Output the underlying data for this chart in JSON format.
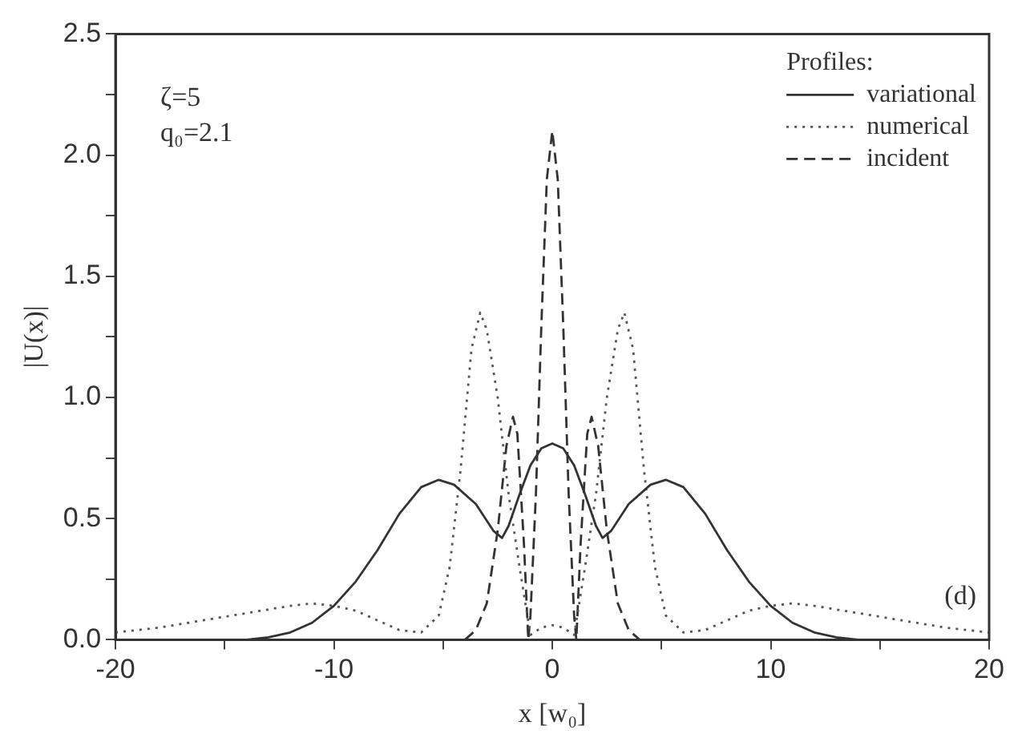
{
  "chart_data": {
    "type": "line",
    "xlabel": "x [w₀]",
    "ylabel": "|U(x)|",
    "legend_title": "Profiles:",
    "legend": "top right",
    "grid": false,
    "marker": "none",
    "xlim": [
      -20,
      20
    ],
    "ylim": [
      0,
      2.5
    ],
    "xticks": [
      -20,
      {
        "value": -15,
        "label": null
      },
      -10,
      {
        "value": -5,
        "label": null
      },
      0,
      {
        "value": 5,
        "label": null
      },
      10,
      {
        "value": 15,
        "label": null
      },
      20
    ],
    "yticks": [
      {
        "value": 0,
        "label": "0.0"
      },
      {
        "value": 0.25,
        "label": null
      },
      {
        "value": 0.5,
        "label": "0.5"
      },
      {
        "value": 0.75,
        "label": null
      },
      {
        "value": 1,
        "label": "1.0"
      },
      {
        "value": 1.25,
        "label": null
      },
      {
        "value": 1.5,
        "label": "1.5"
      },
      {
        "value": 1.75,
        "label": null
      },
      {
        "value": 2,
        "label": "2.0"
      },
      {
        "value": 2.25,
        "label": null
      },
      {
        "value": 2.5,
        "label": "2.5"
      }
    ],
    "annotations": [
      "ζ=5",
      "q₀=2.1",
      "(d)"
    ],
    "series": [
      {
        "name": "variational",
        "color": "#333333",
        "line_style": "solid",
        "x": [
          -20,
          -14,
          -13,
          -12,
          -11,
          -10,
          -9,
          -8,
          -7,
          -6,
          -5.2,
          -4.5,
          -3.5,
          -2.7,
          -2.3,
          -2,
          -1.5,
          -1,
          -0.5,
          0,
          0.5,
          1,
          1.5,
          2,
          2.3,
          2.7,
          3.5,
          4.5,
          5.2,
          6,
          7,
          8,
          9,
          10,
          11,
          12,
          13,
          14,
          20
        ],
        "values": [
          0,
          0,
          0.01,
          0.03,
          0.07,
          0.14,
          0.24,
          0.37,
          0.52,
          0.63,
          0.66,
          0.64,
          0.56,
          0.45,
          0.42,
          0.47,
          0.6,
          0.72,
          0.79,
          0.81,
          0.79,
          0.72,
          0.6,
          0.47,
          0.42,
          0.45,
          0.56,
          0.64,
          0.66,
          0.63,
          0.52,
          0.37,
          0.24,
          0.14,
          0.07,
          0.03,
          0.01,
          0,
          0
        ]
      },
      {
        "name": "numerical",
        "color": "#555555",
        "line_style": "dotted",
        "x": [
          -20,
          -18,
          -16,
          -14,
          -12,
          -11,
          -10,
          -9,
          -8,
          -7,
          -6,
          -5.2,
          -4.7,
          -4.2,
          -3.7,
          -3.3,
          -3,
          -2.5,
          -2,
          -1.5,
          -1,
          -0.5,
          0,
          0.5,
          1,
          1.5,
          2,
          2.5,
          3,
          3.3,
          3.7,
          4.2,
          4.7,
          5.2,
          6,
          7,
          8,
          9,
          10,
          11,
          12,
          14,
          16,
          18,
          20
        ],
        "values": [
          0.03,
          0.05,
          0.08,
          0.11,
          0.14,
          0.15,
          0.14,
          0.12,
          0.08,
          0.04,
          0.03,
          0.1,
          0.3,
          0.7,
          1.2,
          1.35,
          1.28,
          1.0,
          0.6,
          0.3,
          0.02,
          0.05,
          0.06,
          0.05,
          0.02,
          0.3,
          0.6,
          1.0,
          1.28,
          1.35,
          1.2,
          0.7,
          0.3,
          0.1,
          0.03,
          0.04,
          0.08,
          0.12,
          0.14,
          0.15,
          0.14,
          0.11,
          0.08,
          0.05,
          0.03
        ]
      },
      {
        "name": "incident",
        "color": "#333333",
        "line_style": "dashed",
        "x": [
          -4,
          -3.5,
          -3,
          -2.5,
          -2.1,
          -1.8,
          -1.6,
          -1.3,
          -1.1,
          -1,
          -0.75,
          -0.5,
          -0.25,
          0,
          0.25,
          0.5,
          0.75,
          1,
          1.1,
          1.3,
          1.6,
          1.8,
          2.1,
          2.5,
          3,
          3.5,
          4
        ],
        "values": [
          0,
          0.04,
          0.15,
          0.45,
          0.8,
          0.92,
          0.85,
          0.4,
          0,
          0.1,
          0.6,
          1.3,
          1.9,
          2.1,
          1.9,
          1.3,
          0.6,
          0.1,
          0,
          0.4,
          0.85,
          0.92,
          0.8,
          0.45,
          0.15,
          0.04,
          0
        ]
      }
    ]
  }
}
